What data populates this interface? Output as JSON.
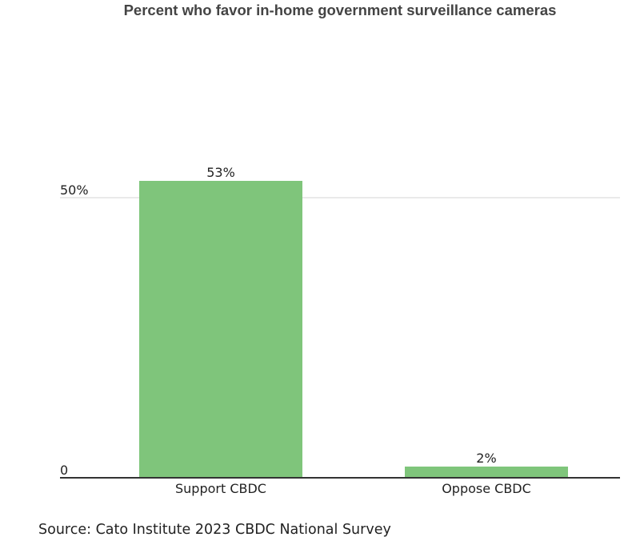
{
  "chart_data": {
    "type": "bar",
    "title": "Percent who favor in-home government surveillance cameras",
    "categories": [
      "Support CBDC",
      "Oppose CBDC"
    ],
    "values": [
      53,
      2
    ],
    "value_labels": [
      "53%",
      "2%"
    ],
    "ytick_values": [
      0,
      50
    ],
    "ytick_labels": [
      "0",
      "50%"
    ],
    "ylim": [
      0,
      60
    ],
    "xlabel": "",
    "ylabel": "",
    "grid": true,
    "bar_color": "#7fc57b",
    "gridline_color": "#d4d4d4",
    "axis_color": "#333333"
  },
  "source": "Source: Cato Institute 2023 CBDC National Survey"
}
